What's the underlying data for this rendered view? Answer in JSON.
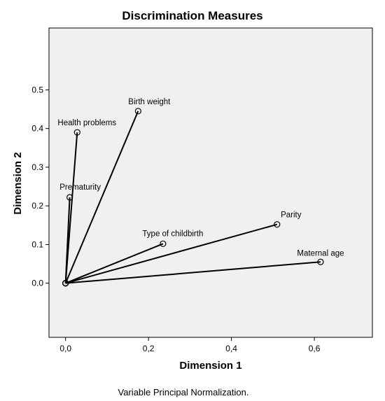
{
  "chart_data": {
    "type": "scatter",
    "title": "Discrimination Measures",
    "xlabel": "Dimension 1",
    "ylabel": "Dimension 2",
    "footnote": "Variable Principal Normalization.",
    "xlim": [
      -0.04,
      0.74
    ],
    "ylim": [
      -0.14,
      0.66
    ],
    "xticks": [
      "0,0",
      "0,2",
      "0,4",
      "0,6"
    ],
    "yticks": [
      "0.0",
      "0.1",
      "0.2",
      "0.3",
      "0.4",
      "0.5"
    ],
    "grid": false,
    "vectors_from_origin": true,
    "points": [
      {
        "label": "Birth weight",
        "x": 0.175,
        "y": 0.445
      },
      {
        "label": "Health problems",
        "x": 0.028,
        "y": 0.39
      },
      {
        "label": "Prematurity",
        "x": 0.01,
        "y": 0.222
      },
      {
        "label": "Type of childbirth",
        "x": 0.235,
        "y": 0.102
      },
      {
        "label": "Parity",
        "x": 0.51,
        "y": 0.152
      },
      {
        "label": "Maternal age",
        "x": 0.615,
        "y": 0.055
      }
    ],
    "colors": {
      "plot_background": "#f0f0f0",
      "line": "#000000"
    }
  }
}
